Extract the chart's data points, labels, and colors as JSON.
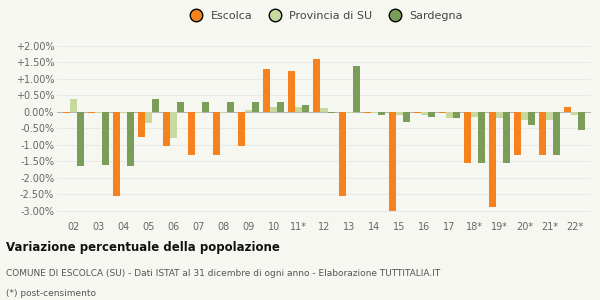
{
  "categories": [
    "02",
    "03",
    "04",
    "05",
    "06",
    "07",
    "08",
    "09",
    "10",
    "11*",
    "12",
    "13",
    "14",
    "15",
    "16",
    "17",
    "18*",
    "19*",
    "20*",
    "21*",
    "22*"
  ],
  "escolca": [
    -0.05,
    -0.05,
    -2.55,
    -0.75,
    -1.05,
    -1.3,
    -1.3,
    -1.05,
    1.3,
    1.25,
    1.6,
    -2.55,
    -0.05,
    -3.0,
    -0.05,
    -0.05,
    -1.55,
    -2.9,
    -1.3,
    -1.3,
    0.15
  ],
  "provincia": [
    0.4,
    -0.05,
    -0.05,
    -0.35,
    -0.8,
    -0.05,
    -0.05,
    0.05,
    0.15,
    0.15,
    0.1,
    -0.05,
    -0.05,
    -0.1,
    -0.1,
    -0.2,
    -0.15,
    -0.2,
    -0.25,
    -0.25,
    -0.1
  ],
  "sardegna": [
    -1.65,
    -1.6,
    -1.65,
    0.4,
    0.3,
    0.3,
    0.3,
    0.3,
    0.3,
    0.2,
    -0.05,
    1.4,
    -0.1,
    -0.3,
    -0.15,
    -0.2,
    -1.55,
    -1.55,
    -0.4,
    -1.3,
    -0.55
  ],
  "escolca_color": "#f5821f",
  "provincia_color": "#c8d9a0",
  "sardegna_color": "#7a9e5a",
  "background_color": "#f7f7f2",
  "grid_color": "#e8e8e8",
  "ylim": [
    -3.25,
    2.25
  ],
  "yticks": [
    -3.0,
    -2.5,
    -2.0,
    -1.5,
    -1.0,
    -0.5,
    0.0,
    0.5,
    1.0,
    1.5,
    2.0
  ],
  "bar_width": 0.28,
  "title": "Variazione percentuale della popolazione",
  "subtitle": "COMUNE DI ESCOLCA (SU) - Dati ISTAT al 31 dicembre di ogni anno - Elaborazione TUTTITALIA.IT",
  "footnote": "(*) post-censimento",
  "legend_labels": [
    "Escolca",
    "Provincia di SU",
    "Sardegna"
  ]
}
